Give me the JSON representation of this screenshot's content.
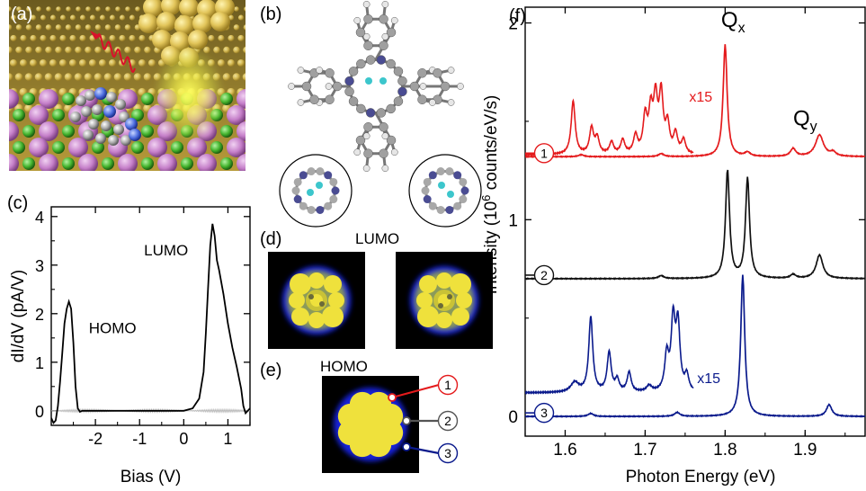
{
  "panels": {
    "a": "(a)",
    "b": "(b)",
    "c": "(c)",
    "d": "(d)",
    "e": "(e)",
    "f": "(f)"
  },
  "panel_d": {
    "title": "LUMO"
  },
  "panel_e": {
    "title": "HOMO",
    "markers": [
      "1",
      "2",
      "3"
    ]
  },
  "colors": {
    "series1": "#e41a1c",
    "series2": "#111111",
    "series3": "#0a1a8c",
    "stm_yellow": "#efe13c",
    "stm_blue": "#1420d8"
  },
  "chart_data": [
    {
      "panel": "c",
      "type": "line",
      "xlabel": "Bias (V)",
      "ylabel": "dI/dV (pA/V)",
      "xlim": [
        -3.0,
        1.5
      ],
      "ylim": [
        -0.3,
        4.2
      ],
      "xticks": [
        -2,
        -1,
        0,
        1
      ],
      "xtick_labels": [
        "-2",
        "-1",
        "0",
        "1"
      ],
      "yticks": [
        0,
        1,
        2,
        3,
        4
      ],
      "ytick_labels": [
        "0",
        "1",
        "2",
        "3",
        "4"
      ],
      "annotations": [
        {
          "text": "HOMO",
          "x": -2.15,
          "y": 1.6
        },
        {
          "text": "LUMO",
          "x": -0.9,
          "y": 3.2
        }
      ],
      "series": [
        {
          "x": [
            -3.0,
            -2.95,
            -2.9,
            -2.85,
            -2.8,
            -2.75,
            -2.7,
            -2.65,
            -2.6,
            -2.55,
            -2.5,
            -2.45,
            -2.4,
            -2.35,
            -2.3,
            -2.25,
            -2.2,
            -2.0,
            -1.5,
            -1.0,
            -0.5,
            0.0,
            0.2,
            0.35,
            0.45,
            0.5,
            0.55,
            0.6,
            0.65,
            0.7,
            0.75,
            0.8,
            0.9,
            1.0,
            1.1,
            1.2,
            1.3,
            1.35,
            1.4,
            1.45,
            1.5
          ],
          "y": [
            -0.15,
            -0.25,
            -0.2,
            0.1,
            0.6,
            1.2,
            1.8,
            2.1,
            2.25,
            2.1,
            1.4,
            0.5,
            0.05,
            -0.02,
            0.0,
            0.0,
            0.0,
            0.0,
            0.0,
            0.0,
            0.0,
            0.0,
            0.05,
            0.25,
            0.8,
            1.6,
            2.5,
            3.4,
            3.85,
            3.6,
            3.1,
            2.9,
            2.4,
            1.8,
            1.3,
            0.9,
            0.45,
            0.1,
            -0.05,
            0.0,
            0.05
          ]
        }
      ]
    },
    {
      "panel": "f",
      "type": "line",
      "xlabel": "Photon Energy (eV)",
      "ylabel_main": "Intensity (10",
      "ylabel_sup": "6",
      "ylabel_rest": " counts/eV/s)",
      "xlim": [
        1.55,
        1.975
      ],
      "ylim": [
        -0.1,
        2.08
      ],
      "xticks": [
        1.6,
        1.7,
        1.8,
        1.9
      ],
      "xtick_labels": [
        "1.6",
        "1.7",
        "1.8",
        "1.9"
      ],
      "yticks": [
        0,
        1,
        2
      ],
      "ytick_labels": [
        "0",
        "1",
        "2"
      ],
      "annotations": [
        {
          "text": "Q",
          "sub": "x",
          "x": 1.795,
          "y": 1.98
        },
        {
          "text": "Q",
          "sub": "y",
          "x": 1.885,
          "y": 1.48
        },
        {
          "text": "x15",
          "x": 1.755,
          "y": 1.6,
          "series": 0
        },
        {
          "text": "x15",
          "x": 1.765,
          "y": 0.17,
          "series": 2
        }
      ],
      "series": [
        {
          "marker": "1",
          "offset": 1.32,
          "peaks": [
            [
              1.8,
              0.57,
              0.003
            ],
            [
              1.828,
              0.02,
              0.004
            ],
            [
              1.885,
              0.04,
              0.004
            ],
            [
              1.918,
              0.11,
              0.006
            ],
            [
              1.935,
              0.02,
              0.004
            ],
            [
              1.62,
              0.01,
              0.004
            ],
            [
              1.72,
              0.015,
              0.004
            ]
          ],
          "zoom": {
            "offset": 1.33,
            "xmax": 1.76,
            "peaks": [
              [
                1.61,
                0.27,
                0.003
              ],
              [
                1.633,
                0.13,
                0.003
              ],
              [
                1.64,
                0.08,
                0.003
              ],
              [
                1.658,
                0.06,
                0.003
              ],
              [
                1.672,
                0.07,
                0.003
              ],
              [
                1.688,
                0.09,
                0.003
              ],
              [
                1.7,
                0.18,
                0.003
              ],
              [
                1.707,
                0.2,
                0.003
              ],
              [
                1.713,
                0.26,
                0.003
              ],
              [
                1.72,
                0.29,
                0.003
              ],
              [
                1.728,
                0.14,
                0.003
              ],
              [
                1.738,
                0.1,
                0.003
              ],
              [
                1.748,
                0.07,
                0.003
              ]
            ]
          }
        },
        {
          "marker": "2",
          "offset": 0.7,
          "peaks": [
            [
              1.803,
              0.55,
              0.003
            ],
            [
              1.828,
              0.51,
              0.003
            ],
            [
              1.918,
              0.12,
              0.005
            ],
            [
              1.885,
              0.02,
              0.004
            ],
            [
              1.72,
              0.015,
              0.004
            ]
          ]
        },
        {
          "marker": "3",
          "offset": 0.0,
          "peaks": [
            [
              1.822,
              0.72,
              0.003
            ],
            [
              1.93,
              0.06,
              0.004
            ],
            [
              1.632,
              0.015,
              0.004
            ],
            [
              1.74,
              0.02,
              0.004
            ]
          ],
          "zoom": {
            "offset": 0.12,
            "xmax": 1.76,
            "peaks": [
              [
                1.612,
                0.05,
                0.006
              ],
              [
                1.632,
                0.38,
                0.003
              ],
              [
                1.655,
                0.2,
                0.003
              ],
              [
                1.665,
                0.06,
                0.003
              ],
              [
                1.68,
                0.1,
                0.003
              ],
              [
                1.705,
                0.03,
                0.004
              ],
              [
                1.727,
                0.18,
                0.003
              ],
              [
                1.735,
                0.35,
                0.003
              ],
              [
                1.741,
                0.33,
                0.003
              ],
              [
                1.752,
                0.08,
                0.003
              ]
            ]
          }
        }
      ]
    }
  ]
}
